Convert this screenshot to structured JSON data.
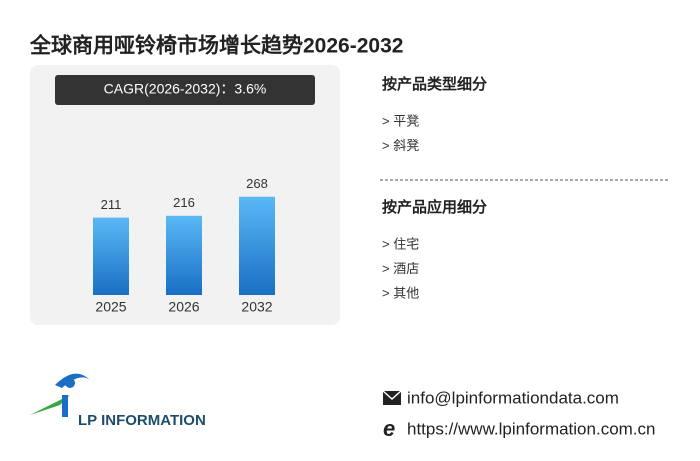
{
  "title": "全球商用哑铃椅市场增长趋势2026-2032",
  "chart_data": {
    "type": "bar",
    "cagr_label": "CAGR(2026-2032)：3.6%",
    "categories": [
      "2025",
      "2026",
      "2032"
    ],
    "values": [
      211,
      216,
      268
    ],
    "color": "#2b8fe0",
    "ylim": [
      0,
      300
    ]
  },
  "segments": [
    {
      "heading": "按产品类型细分",
      "items": [
        "> 平凳",
        "> 斜凳"
      ]
    },
    {
      "heading": "按产品应用细分",
      "items": [
        "> 住宅",
        "> 酒店",
        "> 其他"
      ]
    }
  ],
  "logo": "LP INFORMATION",
  "contact": {
    "email": "info@lpinformationdata.com",
    "website": "https://www.lpinformation.com.cn"
  }
}
